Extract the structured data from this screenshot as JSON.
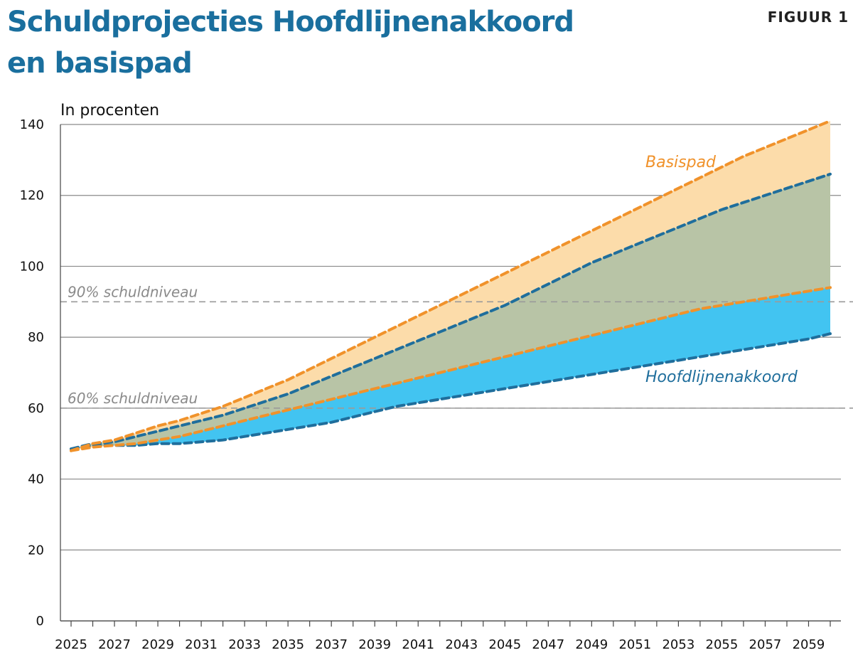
{
  "header": {
    "title_line1": "Schuldprojecties Hoofdlijnenakkoord",
    "title_line2": "en basispad",
    "figure_label": "FIGUUR 1"
  },
  "colors": {
    "basispad_line": "#f0922b",
    "hoofdlijnen_line": "#1f6e9c",
    "basispad_fill": "#fcdcaa",
    "overlap_fill": "#b8c4a6",
    "hoofdlijnen_fill": "#42c4f1",
    "grid": "#8a8a8a",
    "reference": "#9a9a9a"
  },
  "chart_data": {
    "type": "area",
    "title": "Schuldprojecties Hoofdlijnenakkoord en basispad",
    "ylabel": "In procenten",
    "xlabel": "",
    "ylim": [
      0,
      140
    ],
    "xlim": [
      2025,
      2060
    ],
    "yticks": [
      0,
      20,
      40,
      60,
      80,
      100,
      120,
      140
    ],
    "xticks": [
      "2025",
      "2027",
      "2029",
      "2031",
      "2033",
      "2035",
      "2037",
      "2039",
      "2041",
      "2043",
      "2045",
      "2047",
      "2049",
      "2051",
      "2053",
      "2055",
      "2057",
      "2059"
    ],
    "grid": true,
    "x": [
      2025,
      2026,
      2027,
      2028,
      2029,
      2030,
      2031,
      2032,
      2033,
      2034,
      2035,
      2036,
      2037,
      2038,
      2039,
      2040,
      2041,
      2042,
      2043,
      2044,
      2045,
      2046,
      2047,
      2048,
      2049,
      2050,
      2051,
      2052,
      2053,
      2054,
      2055,
      2056,
      2057,
      2058,
      2059,
      2060
    ],
    "series": [
      {
        "name": "Basispad",
        "label": "Basispad",
        "upper": [
          48,
          50,
          51,
          53,
          55,
          56.5,
          58.5,
          60.5,
          63,
          65.5,
          68,
          71,
          74,
          77,
          80,
          83,
          86,
          89,
          92,
          95,
          98,
          101,
          104,
          107,
          110,
          113,
          116,
          119,
          122,
          125,
          128,
          131,
          133.5,
          136,
          138.5,
          141
        ],
        "lower": [
          48,
          49,
          49.5,
          50,
          51,
          52,
          53.5,
          55,
          56.5,
          58,
          59.5,
          61,
          62.5,
          64,
          65.5,
          67,
          68.5,
          70,
          71.5,
          73,
          74.5,
          76,
          77.5,
          79,
          80.5,
          82,
          83.5,
          85,
          86.5,
          88,
          89,
          90,
          91,
          92,
          93,
          94
        ]
      },
      {
        "name": "Hoofdlijnenakkoord",
        "label": "Hoofdlijnenakkoord",
        "upper": [
          48.5,
          50,
          50.5,
          52,
          53.5,
          55,
          56.5,
          58,
          60,
          62,
          64,
          66.5,
          69,
          71.5,
          74,
          76.5,
          79,
          81.5,
          84,
          86.5,
          89,
          92,
          95,
          98,
          101,
          103.5,
          106,
          108.5,
          111,
          113.5,
          116,
          118,
          120,
          122,
          124,
          126
        ],
        "lower": [
          48.5,
          49.5,
          49.5,
          49.5,
          50,
          50,
          50.5,
          51,
          52,
          53,
          54,
          55,
          56,
          57.5,
          59,
          60.5,
          61.5,
          62.5,
          63.5,
          64.5,
          65.5,
          66.5,
          67.5,
          68.5,
          69.5,
          70.5,
          71.5,
          72.5,
          73.5,
          74.5,
          75.5,
          76.5,
          77.5,
          78.5,
          79.5,
          81
        ]
      }
    ],
    "reference_lines": [
      {
        "value": 90,
        "label": "90% schuldniveau"
      },
      {
        "value": 60,
        "label": "60% schuldniveau"
      }
    ],
    "annotations": {
      "basispad_label": "Basispad",
      "hoofdlijnen_label": "Hoofdlijnenakkoord"
    }
  }
}
